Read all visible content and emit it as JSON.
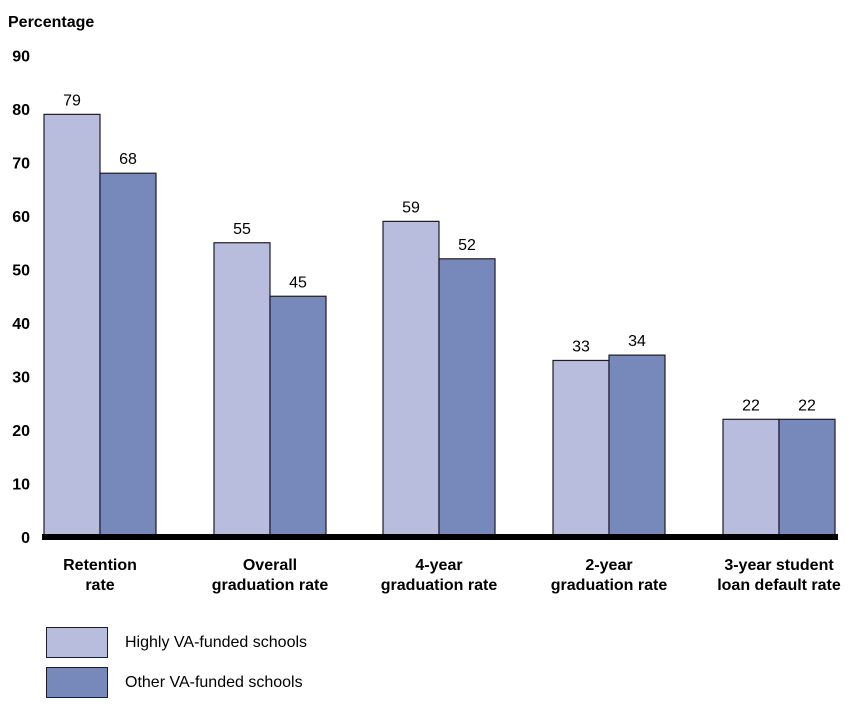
{
  "chart_data": {
    "type": "bar",
    "ylabel": "Percentage",
    "ylim": [
      0,
      90
    ],
    "yticks": [
      0,
      10,
      20,
      30,
      40,
      50,
      60,
      70,
      80,
      90
    ],
    "categories": [
      [
        "Retention",
        "rate"
      ],
      [
        "Overall",
        "graduation rate"
      ],
      [
        "4-year",
        "graduation rate"
      ],
      [
        "2-year",
        "graduation rate"
      ],
      [
        "3-year student",
        "loan default rate"
      ]
    ],
    "series": [
      {
        "name": "Highly VA-funded schools",
        "color": "#b9bddd",
        "values": [
          79,
          55,
          59,
          33,
          22
        ]
      },
      {
        "name": "Other VA-funded schools",
        "color": "#7789bb",
        "values": [
          68,
          45,
          52,
          34,
          22
        ]
      }
    ],
    "grid": false,
    "legend_position": "bottom-left"
  }
}
